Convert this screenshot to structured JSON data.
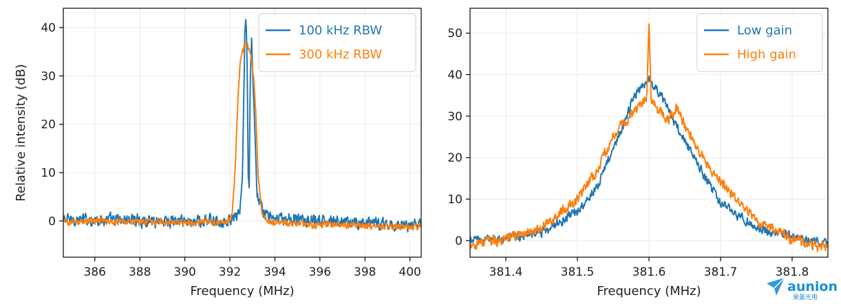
{
  "chart_data": [
    {
      "type": "line",
      "title": "",
      "xlabel": "Frequency (MHz)",
      "ylabel": "Relative intensity (dB)",
      "xlim": [
        384.6,
        400.5
      ],
      "ylim": [
        -7.5,
        44
      ],
      "xticks": [
        386,
        388,
        390,
        392,
        394,
        396,
        398,
        400
      ],
      "yticks": [
        0,
        10,
        20,
        30,
        40
      ],
      "grid": true,
      "legend": "top-right",
      "series": [
        {
          "name": "100 kHz RBW",
          "color": "#1f77b4",
          "noise_amplitude": 1.3,
          "x": [
            384.6,
            386,
            388,
            390,
            391.8,
            392.3,
            392.45,
            392.55,
            392.62,
            392.66,
            392.7,
            392.74,
            392.78,
            392.82,
            392.86,
            392.9,
            392.97,
            393.05,
            393.2,
            393.5,
            394,
            396,
            398,
            400,
            400.5
          ],
          "y": [
            0.3,
            0.2,
            0.2,
            0.0,
            0.0,
            0.4,
            2.5,
            8,
            25,
            38,
            41,
            38,
            27,
            8,
            6,
            28,
            38,
            26,
            6,
            1.5,
            0.4,
            0.0,
            -0.5,
            -0.9,
            -0.6
          ]
        },
        {
          "name": "300 kHz RBW",
          "color": "#ff7f0e",
          "noise_amplitude": 0.7,
          "x": [
            384.6,
            386,
            388,
            390,
            391.9,
            392.1,
            392.25,
            392.35,
            392.45,
            392.55,
            392.65,
            392.75,
            392.85,
            392.95,
            393.05,
            393.15,
            393.25,
            393.4,
            393.6,
            394,
            396,
            398,
            400,
            400.5
          ],
          "y": [
            -0.2,
            0.0,
            -0.2,
            -0.3,
            -0.3,
            1.5,
            12,
            25,
            32,
            34.5,
            36.5,
            36.5,
            35.5,
            33.5,
            30,
            23,
            10,
            2,
            0.2,
            -0.4,
            -0.8,
            -0.9,
            -1.2,
            -1.0
          ]
        }
      ]
    },
    {
      "type": "line",
      "title": "",
      "xlabel": "Frequency (MHz)",
      "ylabel": "",
      "xlim": [
        381.35,
        381.85
      ],
      "ylim": [
        -4,
        56
      ],
      "xticks": [
        381.4,
        381.5,
        381.6,
        381.7,
        381.8
      ],
      "yticks": [
        0,
        10,
        20,
        30,
        40,
        50
      ],
      "grid": true,
      "legend": "top-right",
      "series": [
        {
          "name": "Low gain",
          "color": "#1f77b4",
          "noise_amplitude": 1.1,
          "x": [
            381.35,
            381.4,
            381.45,
            381.5,
            381.53,
            381.56,
            381.58,
            381.6,
            381.62,
            381.64,
            381.67,
            381.7,
            381.75,
            381.8,
            381.85
          ],
          "y": [
            0.0,
            0.5,
            2.0,
            7.0,
            14.0,
            26.0,
            35.0,
            39.0,
            34.0,
            27.0,
            18.0,
            9.0,
            3.0,
            1.0,
            -1.0
          ]
        },
        {
          "name": "High gain",
          "color": "#ff7f0e",
          "noise_amplitude": 1.3,
          "x": [
            381.35,
            381.4,
            381.45,
            381.5,
            381.53,
            381.56,
            381.575,
            381.59,
            381.597,
            381.6,
            381.603,
            381.61,
            381.625,
            381.64,
            381.66,
            381.68,
            381.7,
            381.75,
            381.8,
            381.85
          ],
          "y": [
            -1.0,
            0.5,
            3.0,
            10.0,
            18.0,
            28.0,
            30.0,
            33.0,
            34.0,
            53.0,
            34.0,
            32.0,
            29.0,
            32.0,
            24.0,
            19.0,
            14.0,
            5.0,
            0.5,
            -2.0
          ]
        }
      ]
    }
  ],
  "watermark": {
    "brand": "aunion",
    "sub": "昊量光电",
    "icon": "paper-plane-logo-icon"
  }
}
